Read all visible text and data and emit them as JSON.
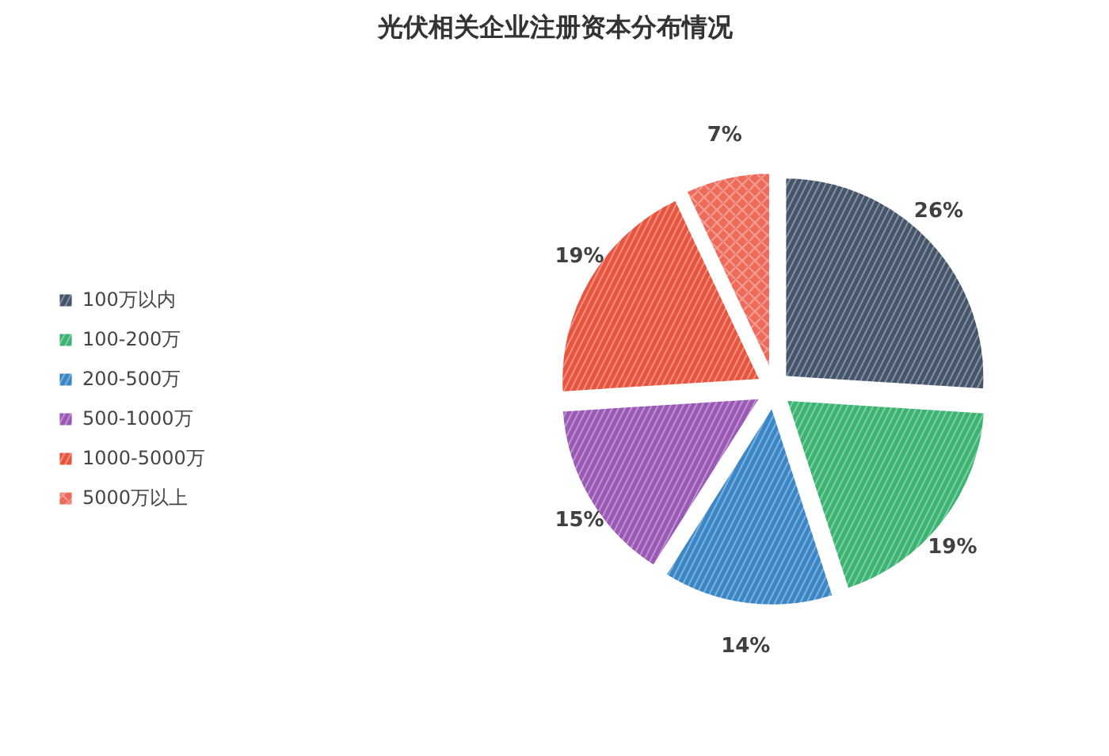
{
  "chart_data": {
    "type": "pie",
    "title": "光伏相关企业注册资本分布情况",
    "categories": [
      "100万以内",
      "100-200万",
      "200-500万",
      "500-1000万",
      "1000-5000万",
      "5000万以上"
    ],
    "values": [
      26,
      19,
      14,
      15,
      19,
      7
    ],
    "colors": [
      "#44546a",
      "#3cb371",
      "#3a87c8",
      "#9b59b6",
      "#e8553f",
      "#ee6a5a"
    ],
    "value_labels": [
      "26%",
      "19%",
      "14%",
      "15%",
      "19%",
      "7%"
    ],
    "legend": "left"
  }
}
